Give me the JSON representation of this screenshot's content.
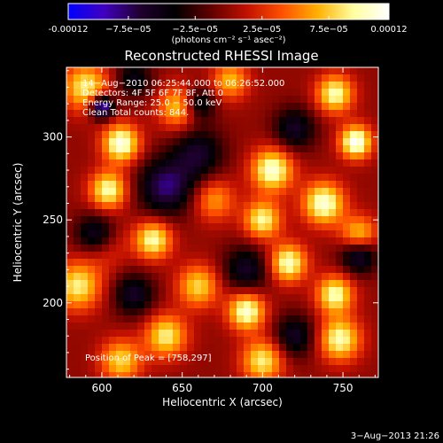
{
  "chart_data": {
    "type": "heatmap",
    "title": "Reconstructed RHESSI Image",
    "xlabel": "Heliocentric X (arcsec)",
    "ylabel": "Heliocentric Y (arcsec)",
    "xlim": [
      578,
      772
    ],
    "ylim": [
      155,
      342
    ],
    "x_ticks": [
      600,
      650,
      700,
      750
    ],
    "x_tick_labels": [
      "600",
      "650",
      "700",
      "750"
    ],
    "y_ticks": [
      200,
      250,
      300
    ],
    "y_tick_labels": [
      "200",
      "250",
      "300"
    ],
    "colorbar": {
      "range": [
        -0.00012,
        0.00012
      ],
      "ticks": [
        -0.00012,
        -7.5e-05,
        -2.5e-05,
        2.5e-05,
        7.5e-05,
        0.00012
      ],
      "tick_labels": [
        "-0.00012",
        "−7.5e−05",
        "−2.5e−05",
        "2.5e−05",
        "7.5e−05",
        "0.00012"
      ],
      "unit_label": "(photons cm⁻² s⁻¹ asec⁻²)",
      "colormap": [
        "#0000ff",
        "#4000c0",
        "#200030",
        "#000000",
        "#600000",
        "#c01000",
        "#ff5000",
        "#ffb000",
        "#ffffa0",
        "#ffffff"
      ]
    },
    "annotations": [
      "14−Aug−2010 06:25:44.000 to 06:26:52.000",
      "Detectors: 4F 5F 6F 7F 8F, Att 0",
      "Energy Range: 25.0 − 50.0 keV",
      "Clean    Total counts: 844."
    ],
    "peak_label": "Position of Peak = [758,297]",
    "peak": [
      758,
      297
    ],
    "sources": [
      {
        "x": 612,
        "y": 296,
        "amp": 0.000115,
        "s": 8
      },
      {
        "x": 590,
        "y": 330,
        "amp": 9e-05,
        "s": 10
      },
      {
        "x": 648,
        "y": 318,
        "amp": 8e-05,
        "s": 9
      },
      {
        "x": 680,
        "y": 334,
        "amp": 7e-05,
        "s": 8
      },
      {
        "x": 604,
        "y": 268,
        "amp": 0.0001,
        "s": 8
      },
      {
        "x": 632,
        "y": 238,
        "amp": 0.0001,
        "s": 8
      },
      {
        "x": 706,
        "y": 280,
        "amp": 0.00011,
        "s": 9
      },
      {
        "x": 700,
        "y": 250,
        "amp": 9.5e-05,
        "s": 8
      },
      {
        "x": 716,
        "y": 224,
        "amp": 0.000105,
        "s": 8
      },
      {
        "x": 758,
        "y": 297,
        "amp": 0.00012,
        "s": 7
      },
      {
        "x": 745,
        "y": 326,
        "amp": 0.0001,
        "s": 8
      },
      {
        "x": 738,
        "y": 260,
        "amp": 0.00011,
        "s": 9
      },
      {
        "x": 760,
        "y": 240,
        "amp": 9.5e-05,
        "s": 8
      },
      {
        "x": 745,
        "y": 205,
        "amp": 0.0001,
        "s": 8
      },
      {
        "x": 748,
        "y": 178,
        "amp": 0.0001,
        "s": 9
      },
      {
        "x": 690,
        "y": 195,
        "amp": 0.00011,
        "s": 8
      },
      {
        "x": 700,
        "y": 165,
        "amp": 9e-05,
        "s": 9
      },
      {
        "x": 640,
        "y": 180,
        "amp": 9e-05,
        "s": 9
      },
      {
        "x": 612,
        "y": 165,
        "amp": 8e-05,
        "s": 9
      },
      {
        "x": 660,
        "y": 210,
        "amp": 8e-05,
        "s": 9
      },
      {
        "x": 585,
        "y": 210,
        "amp": 9e-05,
        "s": 10
      },
      {
        "x": 600,
        "y": 236,
        "amp": 7e-05,
        "s": 10
      },
      {
        "x": 670,
        "y": 262,
        "amp": 6e-05,
        "s": 9
      },
      {
        "x": 600,
        "y": 318,
        "amp": -0.00012,
        "s": 5
      },
      {
        "x": 597,
        "y": 240,
        "amp": -0.00011,
        "s": 9
      },
      {
        "x": 760,
        "y": 230,
        "amp": -9e-05,
        "s": 8
      },
      {
        "x": 660,
        "y": 320,
        "amp": -7e-05,
        "s": 7
      },
      {
        "x": 640,
        "y": 270,
        "amp": -8e-05,
        "s": 12
      },
      {
        "x": 690,
        "y": 220,
        "amp": -6e-05,
        "s": 10
      },
      {
        "x": 660,
        "y": 290,
        "amp": -6e-05,
        "s": 11
      },
      {
        "x": 720,
        "y": 305,
        "amp": -6e-05,
        "s": 9
      },
      {
        "x": 620,
        "y": 205,
        "amp": -6e-05,
        "s": 9
      },
      {
        "x": 720,
        "y": 180,
        "amp": -6e-05,
        "s": 9
      },
      {
        "x": 620,
        "y": 335,
        "amp": -5e-05,
        "s": 8
      }
    ]
  },
  "footer": {
    "timestamp": "3−Aug−2013 21:26"
  }
}
